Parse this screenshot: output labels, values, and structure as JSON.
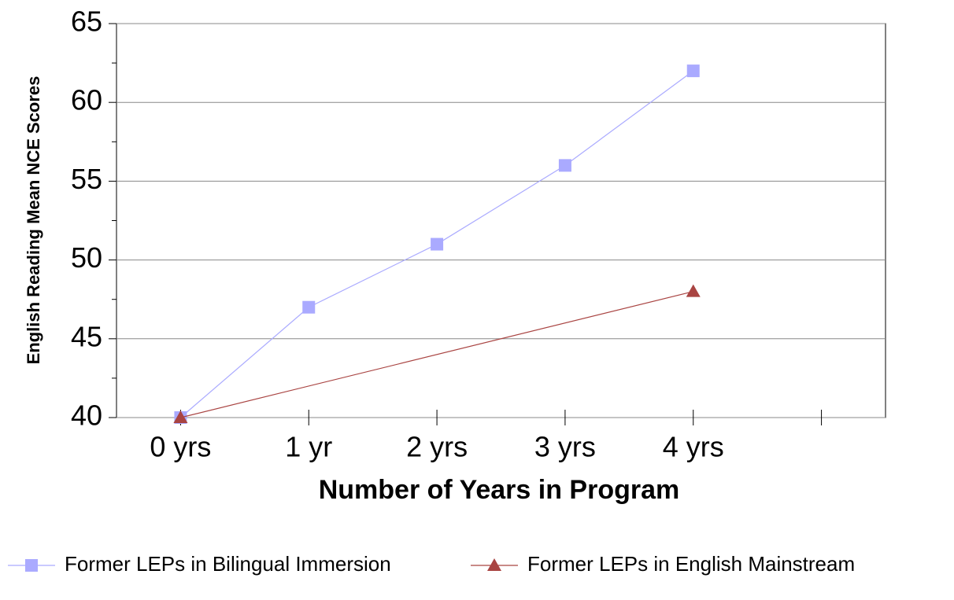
{
  "chart_data": {
    "type": "line",
    "x_label": "Number of Years in Program",
    "y_label": "English Reading Mean NCE Scores",
    "categories": [
      "0 yrs",
      "1 yr",
      "2 yrs",
      "3 yrs",
      "4 yrs",
      null
    ],
    "series": [
      {
        "name": "Former LEPs in Bilingual Immersion",
        "color": "#aaaaff",
        "marker": "square",
        "values": [
          40,
          47,
          51,
          56,
          62,
          null
        ]
      },
      {
        "name": "Former LEPs in English Mainstream",
        "color": "#a94442",
        "marker": "triangle",
        "connect_gaps": true,
        "values": [
          40,
          null,
          null,
          null,
          48,
          null
        ]
      }
    ],
    "ylim": [
      40,
      65
    ],
    "yticks": [
      40,
      45,
      50,
      55,
      60,
      65
    ],
    "yminorticks": [
      42.5,
      47.5,
      52.5,
      57.5,
      62.5
    ],
    "grid": true,
    "legend": "bottom"
  }
}
